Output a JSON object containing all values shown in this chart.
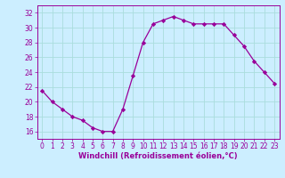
{
  "x": [
    0,
    1,
    2,
    3,
    4,
    5,
    6,
    7,
    8,
    9,
    10,
    11,
    12,
    13,
    14,
    15,
    16,
    17,
    18,
    19,
    20,
    21,
    22,
    23
  ],
  "y": [
    21.5,
    20.0,
    19.0,
    18.0,
    17.5,
    16.5,
    16.0,
    16.0,
    19.0,
    23.5,
    28.0,
    30.5,
    31.0,
    31.5,
    31.0,
    30.5,
    30.5,
    30.5,
    30.5,
    29.0,
    27.5,
    25.5,
    24.0,
    22.5
  ],
  "line_color": "#990099",
  "marker": "D",
  "marker_size": 2.2,
  "background_color": "#cceeff",
  "grid_color": "#aadddd",
  "xlabel": "Windchill (Refroidissement éolien,°C)",
  "xlim": [
    -0.5,
    23.5
  ],
  "ylim": [
    15.0,
    33.0
  ],
  "yticks": [
    16,
    18,
    20,
    22,
    24,
    26,
    28,
    30,
    32
  ],
  "xticks": [
    0,
    1,
    2,
    3,
    4,
    5,
    6,
    7,
    8,
    9,
    10,
    11,
    12,
    13,
    14,
    15,
    16,
    17,
    18,
    19,
    20,
    21,
    22,
    23
  ],
  "axis_fontsize": 6.0,
  "tick_fontsize": 5.5
}
